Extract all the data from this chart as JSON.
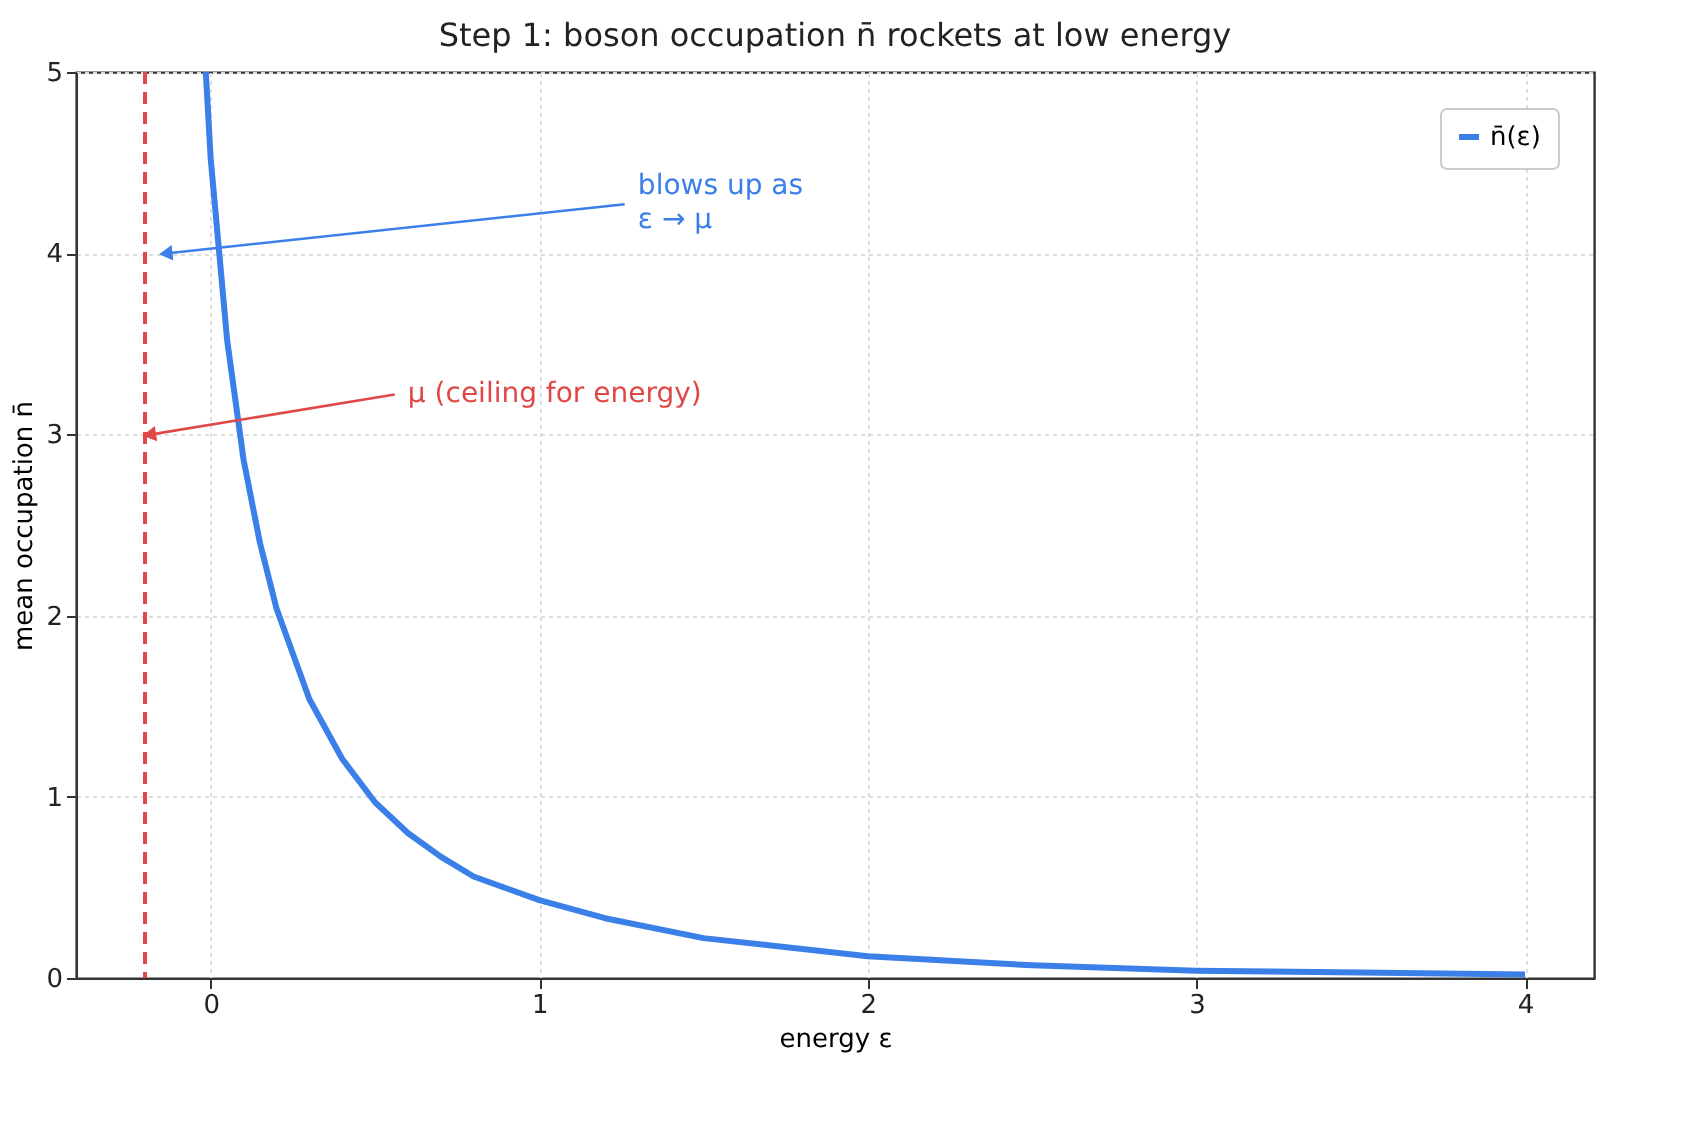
{
  "chart_data": {
    "type": "line",
    "title": "Step 1: boson occupation n̄ rockets at low energy",
    "xlabel": "energy  ε",
    "ylabel": "mean occupation  n̄",
    "x": [
      -0.015,
      0,
      0.05,
      0.1,
      0.15,
      0.2,
      0.3,
      0.4,
      0.5,
      0.6,
      0.7,
      0.8,
      1.0,
      1.2,
      1.5,
      2.0,
      2.5,
      3.0,
      3.5,
      4.0
    ],
    "series": [
      {
        "name": "n̄(ε)",
        "color": "#3b7fe8",
        "values": [
          5.0,
          4.52,
          3.52,
          2.86,
          2.4,
          2.04,
          1.54,
          1.21,
          0.97,
          0.8,
          0.67,
          0.56,
          0.43,
          0.33,
          0.22,
          0.12,
          0.07,
          0.04,
          0.03,
          0.02
        ]
      }
    ],
    "xlim": [
      -0.41,
      4.21
    ],
    "ylim": [
      0,
      5
    ],
    "xticks": [
      0,
      1,
      2,
      3,
      4
    ],
    "yticks": [
      0,
      1,
      2,
      3,
      4,
      5
    ],
    "ref_lines": [
      {
        "axis": "x",
        "value": -0.2,
        "color": "#e04848",
        "line_style": "dashed"
      }
    ],
    "annotations": [
      {
        "text": "blows up as\nε → μ",
        "x": -0.13,
        "y": 4.0
      },
      {
        "text": "μ (ceiling for energy)",
        "x": -0.18,
        "y": 3.0
      }
    ],
    "grid": true,
    "legend": "top right",
    "line_style": "solid",
    "marker": "none"
  }
}
